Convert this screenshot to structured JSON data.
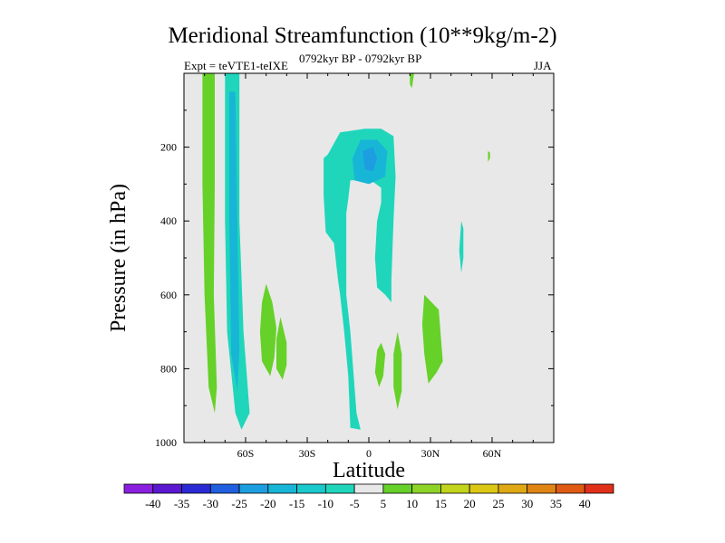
{
  "header": {
    "title": "Meridional Streamfunction (10**9kg/m-2)",
    "expt": "Expt = teVTE1-teIXE",
    "period": "0792kyr BP - 0792kyr BP",
    "season": "JJA"
  },
  "colors": {
    "background": "#e8e8e8",
    "pos5": "#66d128",
    "neg5": "#1fd6bb",
    "neg10": "#18b6d6",
    "neg15": "#1c9ee0"
  },
  "chart_data": {
    "type": "contour",
    "title": "Meridional Streamfunction (10**9kg/m-2)",
    "xlabel": "Latitude",
    "ylabel": "Pressure (in hPa)",
    "xlim": [
      -90,
      90
    ],
    "ylim": [
      1000,
      0
    ],
    "x_ticks": [
      {
        "value": -60,
        "label": "60S"
      },
      {
        "value": -30,
        "label": "30S"
      },
      {
        "value": 0,
        "label": "0"
      },
      {
        "value": 30,
        "label": "30N"
      },
      {
        "value": 60,
        "label": "60N"
      }
    ],
    "y_ticks": [
      {
        "value": 200,
        "label": "200"
      },
      {
        "value": 400,
        "label": "400"
      },
      {
        "value": 600,
        "label": "600"
      },
      {
        "value": 800,
        "label": "800"
      },
      {
        "value": 1000,
        "label": "1000"
      }
    ],
    "colorbar": {
      "levels": [
        -40,
        -35,
        -30,
        -25,
        -20,
        -15,
        -10,
        -5,
        5,
        10,
        15,
        20,
        25,
        30,
        35,
        40
      ],
      "colors": [
        "#8a1fe0",
        "#5a18d0",
        "#2b2bd6",
        "#1f5fe0",
        "#1c9ee0",
        "#18b6d6",
        "#19c9cc",
        "#1fd6bb",
        "#e8e8e8",
        "#66d128",
        "#8ed428",
        "#c2d41c",
        "#dcc814",
        "#e0a814",
        "#e08414",
        "#e05a14",
        "#e0301a"
      ]
    },
    "regions": [
      {
        "name": "sh-positive-column",
        "value": 5,
        "points": [
          [
            -81,
            0
          ],
          [
            -75,
            0
          ],
          [
            -75,
            300
          ],
          [
            -75.5,
            600
          ],
          [
            -74,
            850
          ],
          [
            -75,
            920
          ],
          [
            -78,
            850
          ],
          [
            -80,
            600
          ],
          [
            -81,
            300
          ]
        ]
      },
      {
        "name": "sh-negative-column",
        "value": -5,
        "points": [
          [
            -70,
            0
          ],
          [
            -63,
            0
          ],
          [
            -63,
            400
          ],
          [
            -61,
            700
          ],
          [
            -58,
            920
          ],
          [
            -62,
            965
          ],
          [
            -65,
            920
          ],
          [
            -69,
            700
          ],
          [
            -70,
            400
          ]
        ]
      },
      {
        "name": "sh-core-column",
        "value": -10,
        "points": [
          [
            -68,
            50
          ],
          [
            -65,
            50
          ],
          [
            -64,
            400
          ],
          [
            -63,
            750
          ],
          [
            -64,
            860
          ],
          [
            -67,
            760
          ],
          [
            -68,
            400
          ]
        ]
      },
      {
        "name": "sh-mid-blob",
        "value": 5,
        "points": [
          [
            -50,
            570
          ],
          [
            -47,
            620
          ],
          [
            -45,
            690
          ],
          [
            -46,
            770
          ],
          [
            -48,
            820
          ],
          [
            -52,
            780
          ],
          [
            -53,
            700
          ],
          [
            -52,
            620
          ]
        ]
      },
      {
        "name": "sh-mid-blob-2",
        "value": 5,
        "points": [
          [
            -43,
            660
          ],
          [
            -40,
            730
          ],
          [
            -40,
            790
          ],
          [
            -42,
            830
          ],
          [
            -45,
            800
          ],
          [
            -45,
            720
          ]
        ]
      },
      {
        "name": "tropical-cell",
        "value": -5,
        "points": [
          [
            -22,
            230
          ],
          [
            -20,
            220
          ],
          [
            -14,
            160
          ],
          [
            -2,
            150
          ],
          [
            6,
            150
          ],
          [
            12,
            170
          ],
          [
            13,
            280
          ],
          [
            12,
            400
          ],
          [
            11,
            560
          ],
          [
            11,
            620
          ],
          [
            8,
            600
          ],
          [
            4,
            580
          ],
          [
            3,
            500
          ],
          [
            4,
            400
          ],
          [
            6,
            350
          ],
          [
            6,
            310
          ],
          [
            1,
            290
          ],
          [
            -9,
            290
          ],
          [
            -10,
            340
          ],
          [
            -11,
            380
          ],
          [
            -11,
            600
          ],
          [
            -9,
            700
          ],
          [
            -6,
            920
          ],
          [
            -4,
            965
          ],
          [
            -9,
            960
          ],
          [
            -10,
            820
          ],
          [
            -12,
            700
          ],
          [
            -14,
            600
          ],
          [
            -15,
            560
          ],
          [
            -16,
            510
          ],
          [
            -17,
            460
          ],
          [
            -21,
            430
          ],
          [
            -22,
            330
          ]
        ]
      },
      {
        "name": "tropical-core",
        "value": -10,
        "points": [
          [
            -8,
            230
          ],
          [
            -4,
            180
          ],
          [
            4,
            180
          ],
          [
            9,
            210
          ],
          [
            8,
            280
          ],
          [
            0,
            300
          ],
          [
            -7,
            290
          ]
        ]
      },
      {
        "name": "tropical-inner",
        "value": -15,
        "points": [
          [
            -3,
            210
          ],
          [
            2,
            200
          ],
          [
            4,
            230
          ],
          [
            2,
            265
          ],
          [
            -2,
            260
          ]
        ]
      },
      {
        "name": "nh-blob-a",
        "value": 5,
        "points": [
          [
            6,
            730
          ],
          [
            8,
            760
          ],
          [
            7,
            820
          ],
          [
            5,
            850
          ],
          [
            3,
            810
          ],
          [
            4,
            750
          ]
        ]
      },
      {
        "name": "nh-blob-b",
        "value": 5,
        "points": [
          [
            14,
            700
          ],
          [
            16,
            760
          ],
          [
            16,
            860
          ],
          [
            14,
            910
          ],
          [
            12,
            850
          ],
          [
            12,
            760
          ]
        ]
      },
      {
        "name": "nh-blob-c",
        "value": 5,
        "points": [
          [
            27,
            600
          ],
          [
            34,
            640
          ],
          [
            36,
            780
          ],
          [
            33,
            810
          ],
          [
            29,
            840
          ],
          [
            27,
            760
          ],
          [
            26,
            680
          ]
        ]
      },
      {
        "name": "nh-top-streak",
        "value": 5,
        "points": [
          [
            20,
            0
          ],
          [
            22,
            0
          ],
          [
            21,
            40
          ],
          [
            20,
            30
          ]
        ]
      },
      {
        "name": "nh-right-streak",
        "value": -5,
        "points": [
          [
            45,
            400
          ],
          [
            46,
            420
          ],
          [
            46,
            500
          ],
          [
            45,
            540
          ],
          [
            44,
            480
          ]
        ]
      },
      {
        "name": "nh-small-dot",
        "value": 5,
        "points": [
          [
            58,
            210
          ],
          [
            59,
            215
          ],
          [
            59,
            230
          ],
          [
            58,
            240
          ]
        ]
      }
    ]
  }
}
